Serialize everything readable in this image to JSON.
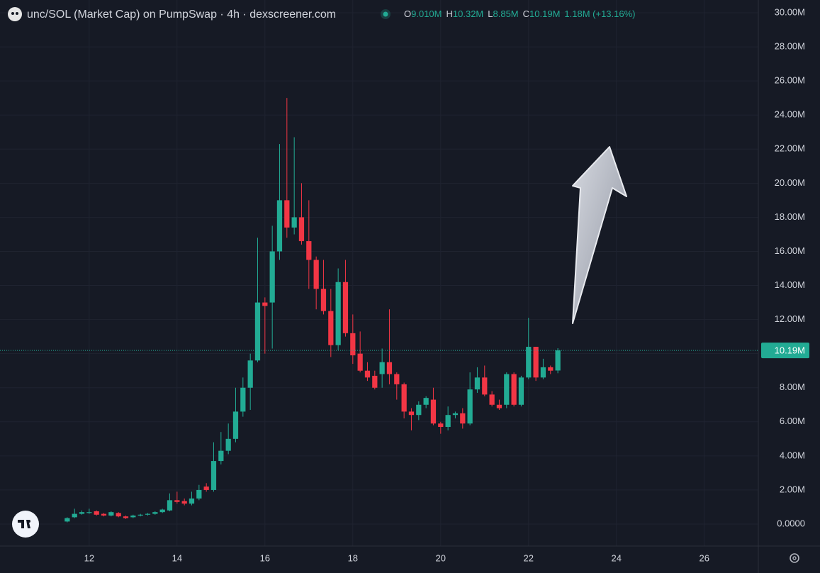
{
  "chart_data": {
    "type": "candlestick",
    "title": "unc/SOL (Market Cap) on PumpSwap · 4h · dexscreener.com",
    "legend": {
      "open_label": "O",
      "open": "9.010M",
      "high_label": "H",
      "high": "10.32M",
      "low_label": "L",
      "low": "8.85M",
      "close_label": "C",
      "close": "10.19M",
      "change": "1.18M (+13.16%)"
    },
    "up_color": "#22ab94",
    "down_color": "#f23645",
    "x": [
      11.5,
      11.667,
      11.833,
      12,
      12.167,
      12.333,
      12.5,
      12.667,
      12.833,
      13,
      13.167,
      13.333,
      13.5,
      13.667,
      13.833,
      14,
      14.167,
      14.333,
      14.5,
      14.667,
      14.833,
      15,
      15.167,
      15.333,
      15.5,
      15.667,
      15.833,
      16,
      16.167,
      16.333,
      16.5,
      16.667,
      16.833,
      17,
      17.167,
      17.333,
      17.5,
      17.667,
      17.833,
      18,
      18.167,
      18.333,
      18.5,
      18.667,
      18.833,
      19,
      19.167,
      19.333,
      19.5,
      19.667,
      19.833,
      20,
      20.167,
      20.333,
      20.5,
      20.667,
      20.833,
      21,
      21.167,
      21.333,
      21.5,
      21.667,
      21.833,
      22,
      22.167,
      22.333,
      22.5,
      22.667
    ],
    "open": [
      0.15,
      0.4,
      0.6,
      0.65,
      0.75,
      0.6,
      0.5,
      0.65,
      0.45,
      0.4,
      0.5,
      0.55,
      0.6,
      0.7,
      0.8,
      1.4,
      1.35,
      1.2,
      1.5,
      2.2,
      2.0,
      3.7,
      4.3,
      5.0,
      6.6,
      8.0,
      9.6,
      13.0,
      13.0,
      16.0,
      19.0,
      17.4,
      18.0,
      16.6,
      15.5,
      13.8,
      12.5,
      10.5,
      14.2,
      11.2,
      10.0,
      9.0,
      8.7,
      8.8,
      9.5,
      8.8,
      8.2,
      6.6,
      6.4,
      7.0,
      7.3,
      5.9,
      5.7,
      6.4,
      6.5,
      5.9,
      7.9,
      8.6,
      7.6,
      7.0,
      7.0,
      8.8,
      7.0,
      8.6,
      10.4,
      8.6,
      9.2,
      9.01
    ],
    "high": [
      0.4,
      0.9,
      0.8,
      0.9,
      0.8,
      0.65,
      0.75,
      0.7,
      0.5,
      0.55,
      0.6,
      0.65,
      0.75,
      0.9,
      1.8,
      1.9,
      1.5,
      1.9,
      2.3,
      2.4,
      4.8,
      5.4,
      5.9,
      8.0,
      8.6,
      10.0,
      16.8,
      13.3,
      17.5,
      22.3,
      25.0,
      22.7,
      20.0,
      19.0,
      15.7,
      15.5,
      13.8,
      15.0,
      15.5,
      12.3,
      11.3,
      9.5,
      9.0,
      10.3,
      12.6,
      8.9,
      8.3,
      6.8,
      7.2,
      7.5,
      8.0,
      6.0,
      6.9,
      6.6,
      6.8,
      8.9,
      9.2,
      9.3,
      7.8,
      7.3,
      8.9,
      8.9,
      8.7,
      12.1,
      10.4,
      9.7,
      9.3,
      10.32
    ],
    "low": [
      0.1,
      0.35,
      0.55,
      0.6,
      0.5,
      0.45,
      0.45,
      0.4,
      0.3,
      0.35,
      0.45,
      0.5,
      0.55,
      0.65,
      0.75,
      1.2,
      1.1,
      1.1,
      1.4,
      1.9,
      1.9,
      3.5,
      4.1,
      4.8,
      6.3,
      6.7,
      9.5,
      10.0,
      10.3,
      15.5,
      16.8,
      17.0,
      16.4,
      13.8,
      12.6,
      12.3,
      9.8,
      10.2,
      11.0,
      9.4,
      8.9,
      8.4,
      7.9,
      8.0,
      8.2,
      7.3,
      6.2,
      5.5,
      6.1,
      6.8,
      5.8,
      5.3,
      5.5,
      6.2,
      5.6,
      5.8,
      7.7,
      7.5,
      6.9,
      6.7,
      6.8,
      6.9,
      6.9,
      8.5,
      8.4,
      8.5,
      8.8,
      8.85
    ],
    "close": [
      0.35,
      0.6,
      0.7,
      0.7,
      0.55,
      0.5,
      0.7,
      0.45,
      0.35,
      0.5,
      0.55,
      0.6,
      0.7,
      0.85,
      1.4,
      1.3,
      1.2,
      1.5,
      2.0,
      2.0,
      3.7,
      4.3,
      5.0,
      6.6,
      8.0,
      9.6,
      13.0,
      12.8,
      16.0,
      19.0,
      17.4,
      18.0,
      16.6,
      15.5,
      13.8,
      12.5,
      10.5,
      14.2,
      11.2,
      9.9,
      9.0,
      8.6,
      8.0,
      9.5,
      8.8,
      8.2,
      6.6,
      6.4,
      7.0,
      7.4,
      5.9,
      5.7,
      6.4,
      6.5,
      5.9,
      7.9,
      8.6,
      7.6,
      7.0,
      6.8,
      8.8,
      7.0,
      8.6,
      10.4,
      8.6,
      9.2,
      9.0,
      10.19
    ],
    "xlim": [
      9.97,
      27.23
    ],
    "xticks": [
      12,
      14,
      16,
      18,
      20,
      22,
      24,
      26
    ],
    "ylim": [
      -1.29,
      30.75
    ],
    "yticks": [
      {
        "value": 0,
        "label": "0.0000"
      },
      {
        "value": 2,
        "label": "2.00M"
      },
      {
        "value": 4,
        "label": "4.00M"
      },
      {
        "value": 6,
        "label": "6.00M"
      },
      {
        "value": 8,
        "label": "8.00M"
      },
      {
        "value": 10,
        "label": "10.00M"
      },
      {
        "value": 12,
        "label": "12.00M"
      },
      {
        "value": 14,
        "label": "14.00M"
      },
      {
        "value": 16,
        "label": "16.00M"
      },
      {
        "value": 18,
        "label": "18.00M"
      },
      {
        "value": 20,
        "label": "20.00M"
      },
      {
        "value": 22,
        "label": "22.00M"
      },
      {
        "value": 24,
        "label": "24.00M"
      },
      {
        "value": 26,
        "label": "26.00M"
      },
      {
        "value": 28,
        "label": "28.00M"
      },
      {
        "value": 30,
        "label": "30.00M"
      }
    ],
    "grid": true,
    "last_price": {
      "value": 10.19,
      "label": "10.19M"
    }
  }
}
